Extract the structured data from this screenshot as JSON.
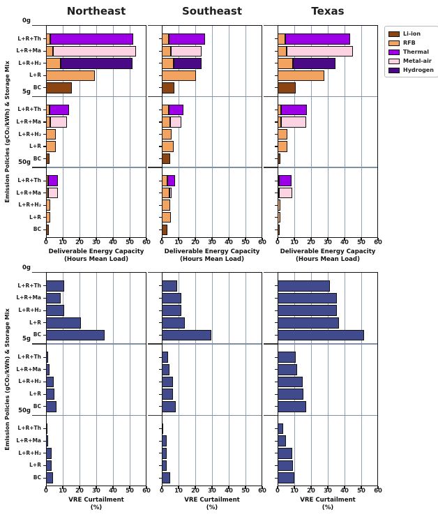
{
  "colors": {
    "Li-ion": "#8B4513",
    "RFB": "#F2A360",
    "Thermal": "#9D00E6",
    "Metal-air": "#FBD3E2",
    "Hydrogen": "#4B0A85",
    "VRE": "#414A8C",
    "grid": "#93A2B4",
    "divider": "#7E90A4",
    "frame": "#111111"
  },
  "legend": {
    "entries": [
      "Li-ion",
      "RFB",
      "Thermal",
      "Metal-air",
      "Hydrogen"
    ]
  },
  "regions": [
    "Northeast",
    "Southeast",
    "Texas"
  ],
  "chart_data": [
    {
      "id": "deliverable-energy-capacity",
      "type": "bar",
      "orientation": "horizontal",
      "stacked": true,
      "xlabel_line1": "Deliverable Energy Capacity",
      "xlabel_line2": "(Hours Mean Load)",
      "ylabel": "Emission Policies (gCO₂/kWh) & Storage Mix",
      "xlim": [
        0,
        60
      ],
      "xticks": [
        0,
        10,
        20,
        30,
        40,
        50,
        60
      ],
      "grid": true,
      "sections": [
        "0g",
        "5g",
        "50g"
      ],
      "categories": [
        "L+R+Th",
        "L+R+Ma",
        "L+R+H₂",
        "L+R",
        "BC"
      ],
      "regions": [
        {
          "name": "Northeast",
          "sections": [
            {
              "label": "0g",
              "bars": [
                {
                  "category": "L+R+Th",
                  "segments": [
                    {
                      "tech": "RFB",
                      "value": 2.5
                    },
                    {
                      "tech": "Thermal",
                      "value": 49.5
                    }
                  ]
                },
                {
                  "category": "L+R+Ma",
                  "segments": [
                    {
                      "tech": "RFB",
                      "value": 4.3
                    },
                    {
                      "tech": "Metal-air",
                      "value": 49.3
                    }
                  ]
                },
                {
                  "category": "L+R+H₂",
                  "segments": [
                    {
                      "tech": "RFB",
                      "value": 8.9
                    },
                    {
                      "tech": "Hydrogen",
                      "value": 42.9
                    }
                  ]
                },
                {
                  "category": "L+R",
                  "segments": [
                    {
                      "tech": "RFB",
                      "value": 29.2
                    }
                  ]
                },
                {
                  "category": "BC",
                  "segments": [
                    {
                      "tech": "Li-ion",
                      "value": 15.6
                    }
                  ]
                }
              ]
            },
            {
              "label": "5g",
              "bars": [
                {
                  "category": "L+R+Th",
                  "segments": [
                    {
                      "tech": "RFB",
                      "value": 2.0
                    },
                    {
                      "tech": "Thermal",
                      "value": 11.6
                    }
                  ]
                },
                {
                  "category": "L+R+Ma",
                  "segments": [
                    {
                      "tech": "RFB",
                      "value": 2.5
                    },
                    {
                      "tech": "Metal-air",
                      "value": 9.9
                    }
                  ]
                },
                {
                  "category": "L+R+H₂",
                  "segments": [
                    {
                      "tech": "RFB",
                      "value": 5.8
                    }
                  ]
                },
                {
                  "category": "L+R",
                  "segments": [
                    {
                      "tech": "RFB",
                      "value": 5.8
                    }
                  ]
                },
                {
                  "category": "BC",
                  "segments": [
                    {
                      "tech": "Li-ion",
                      "value": 2.1
                    }
                  ]
                }
              ]
            },
            {
              "label": "50g",
              "bars": [
                {
                  "category": "L+R+Th",
                  "segments": [
                    {
                      "tech": "RFB",
                      "value": 1.4
                    },
                    {
                      "tech": "Thermal",
                      "value": 5.6
                    }
                  ]
                },
                {
                  "category": "L+R+Ma",
                  "segments": [
                    {
                      "tech": "RFB",
                      "value": 1.2
                    },
                    {
                      "tech": "Metal-air",
                      "value": 6.0
                    }
                  ]
                },
                {
                  "category": "L+R+H₂",
                  "segments": [
                    {
                      "tech": "RFB",
                      "value": 2.4
                    }
                  ]
                },
                {
                  "category": "L+R",
                  "segments": [
                    {
                      "tech": "RFB",
                      "value": 2.4
                    }
                  ]
                },
                {
                  "category": "BC",
                  "segments": [
                    {
                      "tech": "Li-ion",
                      "value": 1.7
                    }
                  ]
                }
              ]
            }
          ]
        },
        {
          "name": "Southeast",
          "sections": [
            {
              "label": "0g",
              "bars": [
                {
                  "category": "L+R+Th",
                  "segments": [
                    {
                      "tech": "RFB",
                      "value": 4.2
                    },
                    {
                      "tech": "Thermal",
                      "value": 21.8
                    }
                  ]
                },
                {
                  "category": "L+R+Ma",
                  "segments": [
                    {
                      "tech": "RFB",
                      "value": 5.6
                    },
                    {
                      "tech": "Metal-air",
                      "value": 18.0
                    }
                  ]
                },
                {
                  "category": "L+R+H₂",
                  "segments": [
                    {
                      "tech": "RFB",
                      "value": 7.0
                    },
                    {
                      "tech": "Hydrogen",
                      "value": 16.6
                    }
                  ]
                },
                {
                  "category": "L+R",
                  "segments": [
                    {
                      "tech": "RFB",
                      "value": 20.6
                    }
                  ]
                },
                {
                  "category": "BC",
                  "segments": [
                    {
                      "tech": "Li-ion",
                      "value": 7.6
                    }
                  ]
                }
              ]
            },
            {
              "label": "5g",
              "bars": [
                {
                  "category": "L+R+Th",
                  "segments": [
                    {
                      "tech": "RFB",
                      "value": 4.2
                    },
                    {
                      "tech": "Thermal",
                      "value": 8.7
                    }
                  ]
                },
                {
                  "category": "L+R+Ma",
                  "segments": [
                    {
                      "tech": "RFB",
                      "value": 4.9
                    },
                    {
                      "tech": "Metal-air",
                      "value": 6.6
                    }
                  ]
                },
                {
                  "category": "L+R+H₂",
                  "segments": [
                    {
                      "tech": "RFB",
                      "value": 6.0
                    }
                  ]
                },
                {
                  "category": "L+R",
                  "segments": [
                    {
                      "tech": "RFB",
                      "value": 7.0
                    }
                  ]
                },
                {
                  "category": "BC",
                  "segments": [
                    {
                      "tech": "Li-ion",
                      "value": 5.0
                    }
                  ]
                }
              ]
            },
            {
              "label": "50g",
              "bars": [
                {
                  "category": "L+R+Th",
                  "segments": [
                    {
                      "tech": "RFB",
                      "value": 3.3
                    },
                    {
                      "tech": "Thermal",
                      "value": 4.6
                    }
                  ]
                },
                {
                  "category": "L+R+Ma",
                  "segments": [
                    {
                      "tech": "RFB",
                      "value": 4.7
                    },
                    {
                      "tech": "Metal-air",
                      "value": 1.2
                    }
                  ]
                },
                {
                  "category": "L+R+H₂",
                  "segments": [
                    {
                      "tech": "RFB",
                      "value": 5.1
                    }
                  ]
                },
                {
                  "category": "L+R",
                  "segments": [
                    {
                      "tech": "RFB",
                      "value": 5.4
                    }
                  ]
                },
                {
                  "category": "BC",
                  "segments": [
                    {
                      "tech": "Li-ion",
                      "value": 3.3
                    }
                  ]
                }
              ]
            }
          ]
        },
        {
          "name": "Texas",
          "sections": [
            {
              "label": "0g",
              "bars": [
                {
                  "category": "L+R+Th",
                  "segments": [
                    {
                      "tech": "RFB",
                      "value": 4.6
                    },
                    {
                      "tech": "Thermal",
                      "value": 38.6
                    }
                  ]
                },
                {
                  "category": "L+R+Ma",
                  "segments": [
                    {
                      "tech": "RFB",
                      "value": 5.6
                    },
                    {
                      "tech": "Metal-air",
                      "value": 39.4
                    }
                  ]
                },
                {
                  "category": "L+R+H₂",
                  "segments": [
                    {
                      "tech": "RFB",
                      "value": 9.3
                    },
                    {
                      "tech": "Hydrogen",
                      "value": 25.4
                    }
                  ]
                },
                {
                  "category": "L+R",
                  "segments": [
                    {
                      "tech": "RFB",
                      "value": 27.8
                    }
                  ]
                },
                {
                  "category": "BC",
                  "segments": [
                    {
                      "tech": "Li-ion",
                      "value": 10.8
                    }
                  ]
                }
              ]
            },
            {
              "label": "5g",
              "bars": [
                {
                  "category": "L+R+Th",
                  "segments": [
                    {
                      "tech": "RFB",
                      "value": 2.1
                    },
                    {
                      "tech": "Thermal",
                      "value": 15.3
                    }
                  ]
                },
                {
                  "category": "L+R+Ma",
                  "segments": [
                    {
                      "tech": "RFB",
                      "value": 2.2
                    },
                    {
                      "tech": "Metal-air",
                      "value": 14.8
                    }
                  ]
                },
                {
                  "category": "L+R+H₂",
                  "segments": [
                    {
                      "tech": "RFB",
                      "value": 5.7
                    }
                  ]
                },
                {
                  "category": "L+R",
                  "segments": [
                    {
                      "tech": "RFB",
                      "value": 5.8
                    }
                  ]
                },
                {
                  "category": "BC",
                  "segments": [
                    {
                      "tech": "Li-ion",
                      "value": 1.8
                    }
                  ]
                }
              ]
            },
            {
              "label": "50g",
              "bars": [
                {
                  "category": "L+R+Th",
                  "segments": [
                    {
                      "tech": "RFB",
                      "value": 1.0
                    },
                    {
                      "tech": "Thermal",
                      "value": 7.3
                    }
                  ]
                },
                {
                  "category": "L+R+Ma",
                  "segments": [
                    {
                      "tech": "RFB",
                      "value": 1.0
                    },
                    {
                      "tech": "Metal-air",
                      "value": 7.8
                    }
                  ]
                },
                {
                  "category": "L+R+H₂",
                  "segments": [
                    {
                      "tech": "RFB",
                      "value": 1.8
                    }
                  ]
                },
                {
                  "category": "L+R",
                  "segments": [
                    {
                      "tech": "RFB",
                      "value": 1.8
                    }
                  ]
                },
                {
                  "category": "BC",
                  "segments": [
                    {
                      "tech": "Li-ion",
                      "value": 1.4
                    }
                  ]
                }
              ]
            }
          ]
        }
      ]
    },
    {
      "id": "vre-curtailment",
      "type": "bar",
      "orientation": "horizontal",
      "stacked": false,
      "xlabel_line1": "VRE Curtailment",
      "xlabel_line2": "(%)",
      "ylabel": "Emission Policies (gCO₂/kWh) & Storage Mix",
      "xlim": [
        0,
        60
      ],
      "xticks": [
        0,
        10,
        20,
        30,
        40,
        50,
        60
      ],
      "grid": true,
      "sections": [
        "0g",
        "5g",
        "50g"
      ],
      "categories": [
        "L+R+Th",
        "L+R+Ma",
        "L+R+H₂",
        "L+R",
        "BC"
      ],
      "series_color": "VRE",
      "regions": [
        {
          "name": "Northeast",
          "sections": [
            {
              "label": "0g",
              "values": [
                10.8,
                8.9,
                11.0,
                21.0,
                35.0
              ]
            },
            {
              "label": "5g",
              "values": [
                1.3,
                2.1,
                4.4,
                5.1,
                6.1
              ]
            },
            {
              "label": "50g",
              "values": [
                0.2,
                1.4,
                3.5,
                3.5,
                4.0
              ]
            }
          ]
        },
        {
          "name": "Southeast",
          "sections": [
            {
              "label": "0g",
              "values": [
                9.3,
                11.8,
                11.8,
                13.6,
                29.7
              ]
            },
            {
              "label": "5g",
              "values": [
                3.9,
                4.6,
                6.5,
                6.7,
                8.2
              ]
            },
            {
              "label": "50g",
              "values": [
                0.3,
                2.7,
                2.9,
                2.7,
                4.9
              ]
            }
          ]
        },
        {
          "name": "Texas",
          "sections": [
            {
              "label": "0g",
              "values": [
                31.3,
                35.4,
                35.4,
                36.6,
                51.7
              ]
            },
            {
              "label": "5g",
              "values": [
                11.0,
                11.8,
                15.1,
                15.4,
                17.2
              ]
            },
            {
              "label": "50g",
              "values": [
                3.4,
                4.8,
                8.7,
                9.1,
                10.0
              ]
            }
          ]
        }
      ]
    }
  ]
}
